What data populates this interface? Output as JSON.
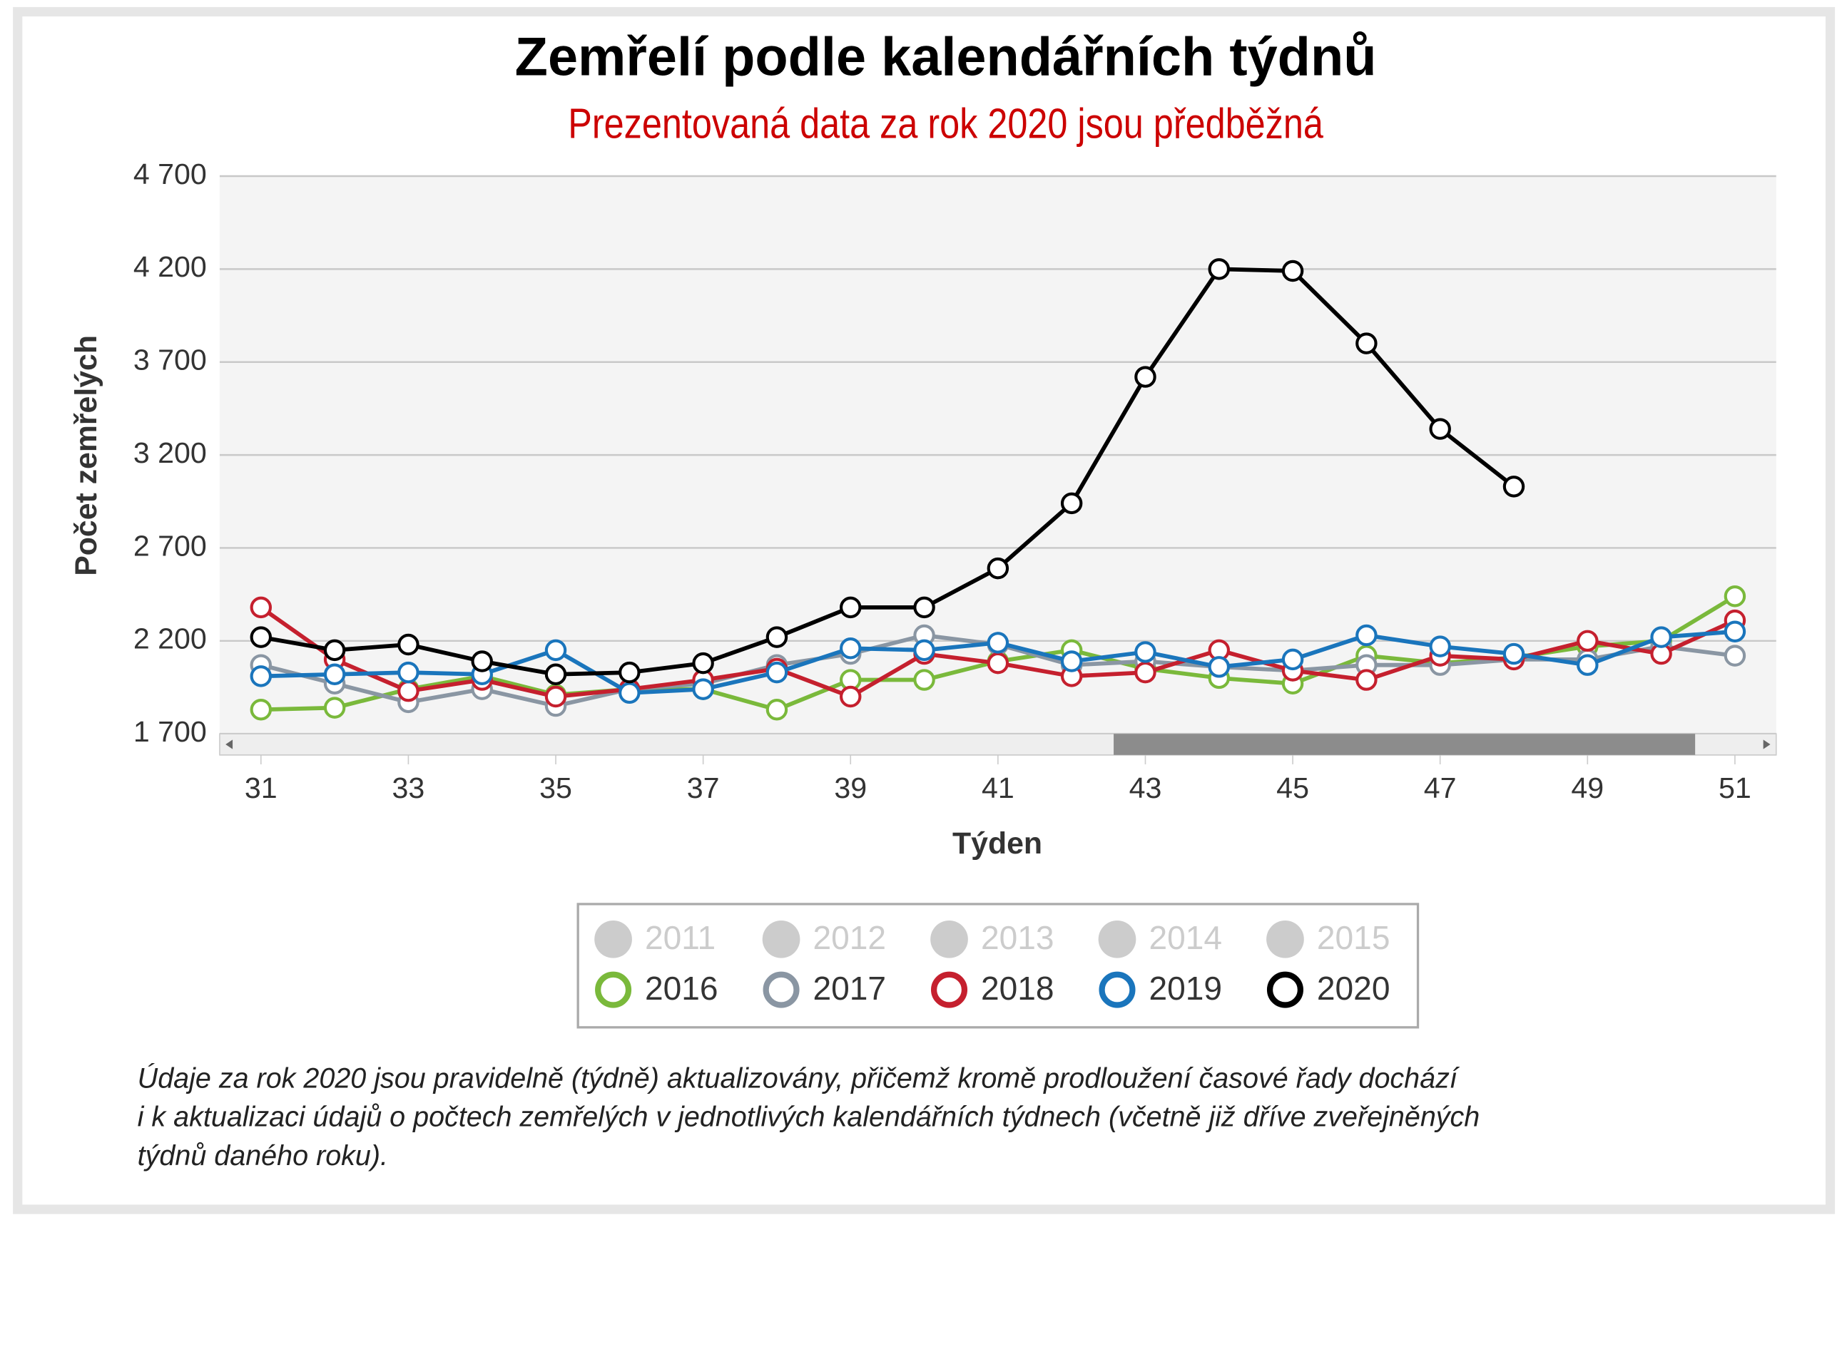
{
  "chart_data": {
    "type": "line",
    "title": "Zemřelí podle kalendářních týdnů",
    "subtitle": "Prezentovaná data za rok 2020 jsou předběžná",
    "x_label": "Týden",
    "y_label": "Počet zemřelých",
    "x": [
      31,
      32,
      33,
      34,
      35,
      36,
      37,
      38,
      39,
      40,
      41,
      42,
      43,
      44,
      45,
      46,
      47,
      48,
      49,
      50,
      51
    ],
    "xlim": [
      30.44,
      51.56
    ],
    "xticks": [
      31,
      33,
      35,
      37,
      39,
      41,
      43,
      45,
      47,
      49,
      51
    ],
    "ylim": [
      1700,
      4700
    ],
    "yticks": [
      {
        "value": 1700,
        "label": "1 700"
      },
      {
        "value": 2200,
        "label": "2 200"
      },
      {
        "value": 2700,
        "label": "2 700"
      },
      {
        "value": 3200,
        "label": "3 200"
      },
      {
        "value": 3700,
        "label": "3 700"
      },
      {
        "value": 4200,
        "label": "4 200"
      },
      {
        "value": 4700,
        "label": "4 700"
      }
    ],
    "grid": true,
    "series": [
      {
        "name": "2011",
        "color": "#cccccc",
        "visible": false
      },
      {
        "name": "2012",
        "color": "#cccccc",
        "visible": false
      },
      {
        "name": "2013",
        "color": "#cccccc",
        "visible": false
      },
      {
        "name": "2014",
        "color": "#cccccc",
        "visible": false
      },
      {
        "name": "2015",
        "color": "#cccccc",
        "visible": false
      },
      {
        "name": "2016",
        "color": "#7ab93b",
        "visible": true,
        "values": [
          1830,
          1840,
          1940,
          2010,
          1910,
          1940,
          1940,
          1830,
          1990,
          1990,
          2090,
          2150,
          2050,
          2000,
          1970,
          2120,
          2080,
          2110,
          2170,
          2200,
          2440
        ]
      },
      {
        "name": "2017",
        "color": "#8a96a3",
        "visible": true,
        "values": [
          2070,
          1970,
          1870,
          1940,
          1850,
          1940,
          1970,
          2070,
          2130,
          2230,
          2180,
          2070,
          2090,
          2060,
          2040,
          2070,
          2070,
          2100,
          2100,
          2170,
          2120
        ]
      },
      {
        "name": "2018",
        "color": "#c5202e",
        "visible": true,
        "values": [
          2380,
          2100,
          1930,
          1990,
          1900,
          1940,
          1990,
          2050,
          1900,
          2130,
          2080,
          2010,
          2030,
          2150,
          2040,
          1990,
          2120,
          2100,
          2200,
          2130,
          2310
        ]
      },
      {
        "name": "2019",
        "color": "#1a75bc",
        "visible": true,
        "values": [
          2010,
          2020,
          2030,
          2020,
          2150,
          1920,
          1940,
          2030,
          2160,
          2150,
          2190,
          2090,
          2140,
          2060,
          2100,
          2230,
          2170,
          2130,
          2070,
          2220,
          2250
        ]
      },
      {
        "name": "2020",
        "color": "#000000",
        "visible": true,
        "values": [
          2220,
          2150,
          2180,
          2090,
          2020,
          2030,
          2080,
          2220,
          2380,
          2380,
          2590,
          2940,
          3620,
          4200,
          4190,
          3800,
          3340,
          3030,
          null,
          null,
          null
        ]
      }
    ],
    "note": [
      "Údaje za rok 2020 jsou pravidelně (týdně) aktualizovány, přičemž kromě prodloužení časové řady dochází",
      "i k aktualizaci údajů o počtech zemřelých v jednotlivých kalendářních týdnech (včetně již dříve zveřejněných",
      "týdnů daného roku)."
    ]
  }
}
